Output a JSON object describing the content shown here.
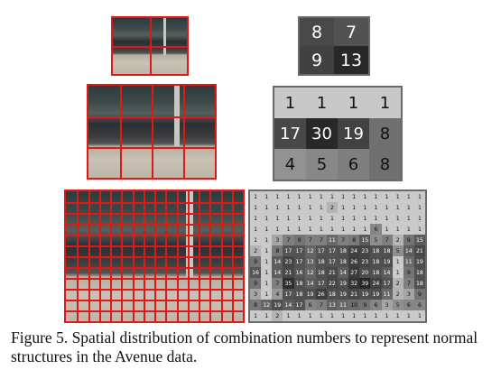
{
  "figure": {
    "caption": "Figure 5. Spatial distribution of combination numbers to represent normal structures in the Avenue data."
  },
  "rows": [
    {
      "name": "2x2",
      "grid": [
        2,
        2
      ],
      "values": [
        [
          8,
          7
        ],
        [
          9,
          13
        ]
      ]
    },
    {
      "name": "4x3",
      "grid": [
        4,
        3
      ],
      "values": [
        [
          1,
          1,
          1,
          1
        ],
        [
          17,
          30,
          19,
          8
        ],
        [
          4,
          5,
          6,
          8
        ]
      ]
    },
    {
      "name": "16x12",
      "grid": [
        16,
        12
      ],
      "values": [
        [
          1,
          1,
          1,
          1,
          1,
          1,
          1,
          1,
          1,
          1,
          1,
          1,
          1,
          1,
          1,
          1
        ],
        [
          1,
          1,
          1,
          1,
          1,
          1,
          1,
          2,
          1,
          1,
          1,
          1,
          1,
          1,
          1,
          1
        ],
        [
          1,
          1,
          1,
          1,
          1,
          1,
          1,
          1,
          1,
          1,
          1,
          1,
          1,
          1,
          1,
          1
        ],
        [
          1,
          1,
          1,
          1,
          1,
          1,
          1,
          1,
          1,
          1,
          1,
          6,
          1,
          1,
          1,
          1
        ],
        [
          1,
          1,
          3,
          7,
          9,
          7,
          7,
          11,
          7,
          8,
          15,
          5,
          7,
          2,
          9,
          15
        ],
        [
          2,
          1,
          8,
          17,
          17,
          12,
          17,
          17,
          18,
          24,
          23,
          18,
          18,
          5,
          14,
          21
        ],
        [
          9,
          1,
          14,
          23,
          17,
          13,
          18,
          17,
          18,
          26,
          23,
          18,
          19,
          1,
          11,
          19
        ],
        [
          16,
          1,
          14,
          21,
          16,
          12,
          18,
          21,
          14,
          27,
          20,
          18,
          14,
          1,
          9,
          18
        ],
        [
          9,
          1,
          7,
          35,
          18,
          14,
          17,
          22,
          19,
          32,
          39,
          24,
          17,
          2,
          7,
          18
        ],
        [
          3,
          1,
          4,
          17,
          18,
          19,
          26,
          18,
          19,
          21,
          19,
          19,
          11,
          2,
          3,
          9
        ],
        [
          8,
          12,
          19,
          14,
          17,
          6,
          7,
          13,
          11,
          10,
          9,
          6,
          3,
          5,
          6,
          6
        ],
        [
          1,
          1,
          2,
          1,
          1,
          1,
          1,
          1,
          1,
          1,
          1,
          1,
          1,
          1,
          1,
          1
        ]
      ]
    }
  ]
}
